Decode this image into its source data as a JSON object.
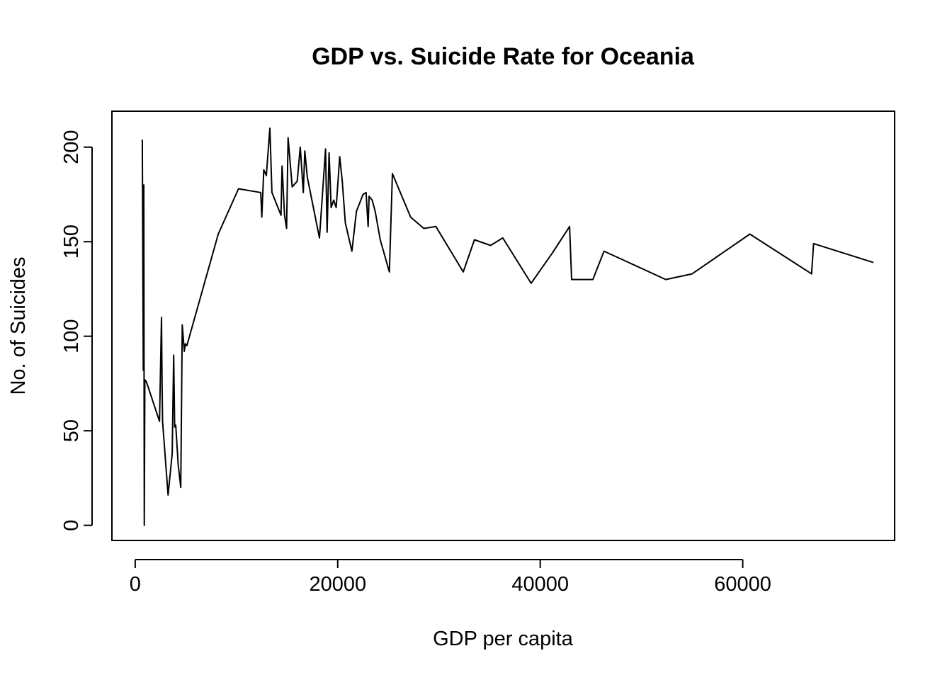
{
  "chart_data": {
    "type": "line",
    "title": "GDP vs. Suicide Rate for Oceania",
    "xlabel": "GDP per capita",
    "ylabel": "No. of Suicides",
    "xlim": [
      -2300,
      75000
    ],
    "ylim": [
      -8,
      219
    ],
    "xticks": [
      0,
      20000,
      40000,
      60000
    ],
    "xtick_labels": [
      "0",
      "20000",
      "40000",
      "60000"
    ],
    "yticks": [
      0,
      50,
      100,
      150,
      200
    ],
    "ytick_labels": [
      "0",
      "50",
      "100",
      "150",
      "200"
    ],
    "grid": false,
    "color": "#000000",
    "series": [
      {
        "x": [
          700,
          800,
          850,
          900,
          950,
          1100,
          2400,
          2600,
          2650,
          2700,
          3250,
          3650,
          3800,
          3900,
          4000,
          4250,
          4500,
          4650,
          4850,
          4950,
          5100,
          8200,
          10200,
          12400,
          12500,
          12700,
          12950,
          13300,
          13500,
          14400,
          14500,
          14750,
          14950,
          15100,
          15500,
          16000,
          16300,
          16600,
          16750,
          17000,
          18200,
          18800,
          18950,
          19150,
          19350,
          19600,
          19850,
          20200,
          20450,
          20750,
          21400,
          21850,
          22500,
          22800,
          23000,
          23100,
          23400,
          23700,
          24200,
          25100,
          25400,
          27200,
          28500,
          29700,
          32400,
          33500,
          35100,
          36300,
          39100,
          41200,
          42900,
          43100,
          45200,
          46300,
          52400,
          55000,
          60700,
          66800,
          67000,
          72900
        ],
        "y": [
          204,
          82,
          180,
          0,
          77,
          76,
          55,
          110,
          75,
          55,
          16,
          38,
          90,
          52,
          53,
          32,
          20,
          106,
          92,
          96,
          95,
          154,
          178,
          176,
          163,
          188,
          185,
          210,
          176,
          164,
          190,
          164,
          157,
          205,
          179,
          182,
          200,
          176,
          198,
          184,
          152,
          199,
          155,
          197,
          168,
          172,
          168,
          195,
          182,
          160,
          145,
          166,
          175,
          176,
          158,
          174,
          172,
          166,
          151,
          134,
          186,
          163,
          157,
          158,
          134,
          151,
          148,
          152,
          128,
          144,
          158,
          130,
          130,
          145,
          130,
          133,
          154,
          133,
          149,
          139
        ]
      }
    ]
  }
}
